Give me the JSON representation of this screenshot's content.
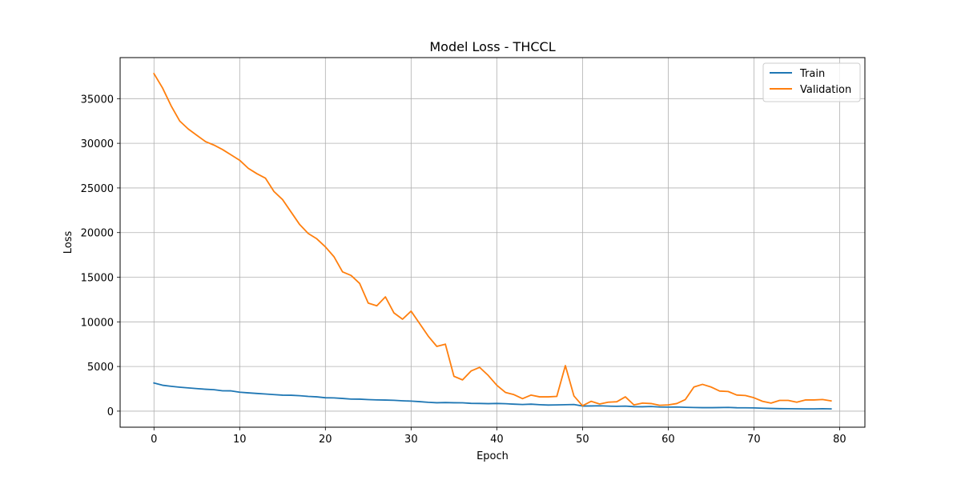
{
  "chart_data": {
    "type": "line",
    "title": "Model Loss - THCCL",
    "xlabel": "Epoch",
    "ylabel": "Loss",
    "xlim": [
      -3.95,
      82.95
    ],
    "ylim": [
      -1800,
      39600
    ],
    "xticks": [
      0,
      10,
      20,
      30,
      40,
      50,
      60,
      70,
      80
    ],
    "yticks": [
      0,
      5000,
      10000,
      15000,
      20000,
      25000,
      30000,
      35000
    ],
    "grid": true,
    "legend_position": "top-right",
    "x": [
      0,
      1,
      2,
      3,
      4,
      5,
      6,
      7,
      8,
      9,
      10,
      11,
      12,
      13,
      14,
      15,
      16,
      17,
      18,
      19,
      20,
      21,
      22,
      23,
      24,
      25,
      26,
      27,
      28,
      29,
      30,
      31,
      32,
      33,
      34,
      35,
      36,
      37,
      38,
      39,
      40,
      41,
      42,
      43,
      44,
      45,
      46,
      47,
      48,
      49,
      50,
      51,
      52,
      53,
      54,
      55,
      56,
      57,
      58,
      59,
      60,
      61,
      62,
      63,
      64,
      65,
      66,
      67,
      68,
      69,
      70,
      71,
      72,
      73,
      74,
      75,
      76,
      77,
      78,
      79
    ],
    "series": [
      {
        "name": "Train",
        "color": "#1f77b4",
        "values": [
          3150,
          2900,
          2780,
          2680,
          2600,
          2520,
          2450,
          2400,
          2280,
          2270,
          2120,
          2050,
          1980,
          1920,
          1850,
          1790,
          1780,
          1730,
          1650,
          1600,
          1500,
          1480,
          1420,
          1350,
          1340,
          1290,
          1260,
          1240,
          1210,
          1160,
          1120,
          1060,
          990,
          940,
          960,
          940,
          930,
          870,
          860,
          840,
          860,
          830,
          780,
          740,
          780,
          720,
          680,
          700,
          720,
          740,
          570,
          580,
          600,
          560,
          540,
          560,
          500,
          490,
          520,
          460,
          450,
          460,
          430,
          410,
          390,
          390,
          400,
          420,
          380,
          370,
          360,
          330,
          300,
          280,
          270,
          260,
          250,
          250,
          270,
          250
        ]
      },
      {
        "name": "Validation",
        "color": "#ff7f0e",
        "values": [
          37800,
          36200,
          34200,
          32500,
          31600,
          30900,
          30200,
          29800,
          29300,
          28700,
          28100,
          27200,
          26600,
          26100,
          24600,
          23700,
          22300,
          20900,
          19900,
          19300,
          18400,
          17300,
          15600,
          15200,
          14300,
          12100,
          11800,
          12800,
          11000,
          10300,
          11200,
          9800,
          8400,
          7250,
          7500,
          3900,
          3500,
          4500,
          4900,
          4000,
          2900,
          2100,
          1850,
          1400,
          1800,
          1600,
          1600,
          1650,
          5100,
          1700,
          600,
          1100,
          800,
          1000,
          1050,
          1600,
          700,
          900,
          850,
          650,
          700,
          850,
          1300,
          2700,
          3000,
          2700,
          2250,
          2200,
          1800,
          1750,
          1500,
          1100,
          900,
          1200,
          1200,
          1000,
          1250,
          1250,
          1300,
          1150
        ]
      }
    ]
  }
}
